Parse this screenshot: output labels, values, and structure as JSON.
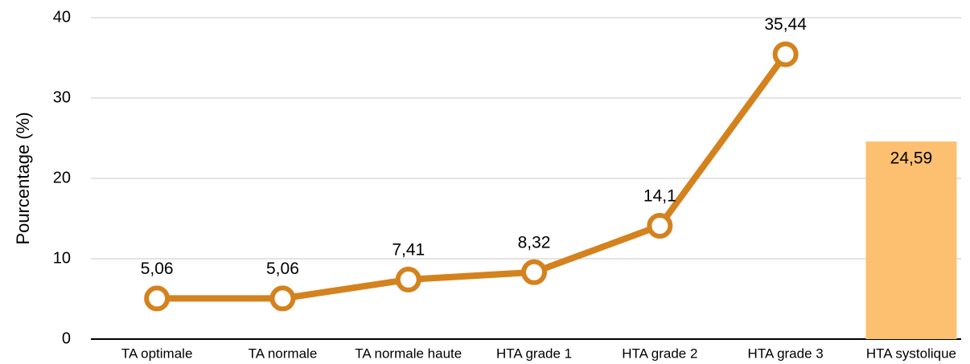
{
  "chart_data": {
    "type": "line",
    "y_label": "Pourcentage (%)",
    "categories": [
      "TA optimale",
      "TA normale",
      "TA normale haute",
      "HTA grade 1",
      "HTA grade 2",
      "HTA grade 3",
      "HTA systolique"
    ],
    "series": [
      {
        "type": "line",
        "color": "#d4821e",
        "values": [
          5.06,
          5.06,
          7.41,
          8.32,
          14.1,
          35.44,
          null
        ],
        "value_labels": [
          "5,06",
          "5,06",
          "7,41",
          "8,32",
          "14,1",
          "35,44",
          null
        ]
      },
      {
        "type": "bar",
        "color": "#fdc070",
        "values": [
          null,
          null,
          null,
          null,
          null,
          null,
          24.59
        ],
        "value_labels": [
          null,
          null,
          null,
          null,
          null,
          null,
          "24,59"
        ]
      }
    ],
    "ylim": [
      0,
      40
    ],
    "yticks": [
      0,
      10,
      20,
      30,
      40
    ],
    "grid": true
  }
}
